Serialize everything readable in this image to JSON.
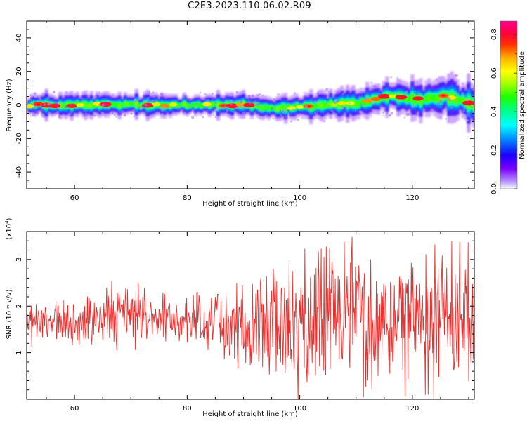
{
  "title": "C2E3.2023.110.06.02.R09",
  "chart_data": [
    {
      "type": "heatmap",
      "xlabel": "Height of straight line (km)",
      "ylabel": "Frequency (Hz)",
      "xlim": [
        51.5,
        131
      ],
      "ylim": [
        -50,
        50
      ],
      "xticks": [
        60,
        80,
        100,
        120
      ],
      "yticks": [
        -40,
        -20,
        0,
        20,
        40
      ],
      "colorbar": {
        "label": "Normalized spectral amplitude",
        "range": [
          0,
          0.87
        ],
        "ticks": [
          "0.0",
          "0.2",
          "0.4",
          "0.6",
          "0.8"
        ],
        "tick_values": [
          0,
          0.2,
          0.4,
          0.6,
          0.8
        ],
        "colormap": "rainbow (purple-blue-cyan-green-yellow-orange-red-magenta)"
      },
      "ridge": {
        "description": "Energy concentrated near 0 Hz, slight rise at larger heights",
        "center_frequency_hz": [
          [
            52,
            0
          ],
          [
            70,
            0
          ],
          [
            90,
            0
          ],
          [
            95,
            -2
          ],
          [
            100,
            -1
          ],
          [
            110,
            1
          ],
          [
            116,
            5
          ],
          [
            122,
            3
          ],
          [
            126,
            5
          ],
          [
            131,
            0
          ]
        ],
        "approx_half_width_hz": [
          [
            52,
            3
          ],
          [
            90,
            3
          ],
          [
            110,
            4
          ],
          [
            131,
            6
          ]
        ],
        "peak_value": 0.87
      },
      "grid": false
    },
    {
      "type": "line",
      "xlabel": "Height of straight line (km)",
      "ylabel": "SNR (10 * v/v)",
      "yscale_label": "(x10",
      "yscale_exp": "4",
      "yscale_close": ")",
      "xlim": [
        51.5,
        131
      ],
      "ylim": [
        0,
        3.6
      ],
      "xticks": [
        60,
        80,
        100,
        120
      ],
      "yticks": [
        1,
        2,
        3
      ],
      "series": [
        {
          "color": "#e8312f",
          "envelope": [
            {
              "x": 52,
              "y_low": 1.1,
              "y_high": 2.2
            },
            {
              "x": 60,
              "y_low": 1.0,
              "y_high": 2.2
            },
            {
              "x": 70,
              "y_low": 1.1,
              "y_high": 2.65
            },
            {
              "x": 78,
              "y_low": 1.2,
              "y_high": 2.1
            },
            {
              "x": 85,
              "y_low": 0.8,
              "y_high": 2.5
            },
            {
              "x": 92,
              "y_low": 0.2,
              "y_high": 2.6
            },
            {
              "x": 100,
              "y_low": 0.1,
              "y_high": 3.2
            },
            {
              "x": 108.6,
              "y_low": 0.1,
              "y_high": 3.6
            },
            {
              "x": 115,
              "y_low": 0.1,
              "y_high": 3.3
            },
            {
              "x": 120,
              "y_low": 0.0,
              "y_high": 3.3
            },
            {
              "x": 126,
              "y_low": 0.0,
              "y_high": 3.5
            },
            {
              "x": 131,
              "y_low": 0.0,
              "y_high": 3.3
            }
          ]
        }
      ],
      "grid": false
    }
  ]
}
